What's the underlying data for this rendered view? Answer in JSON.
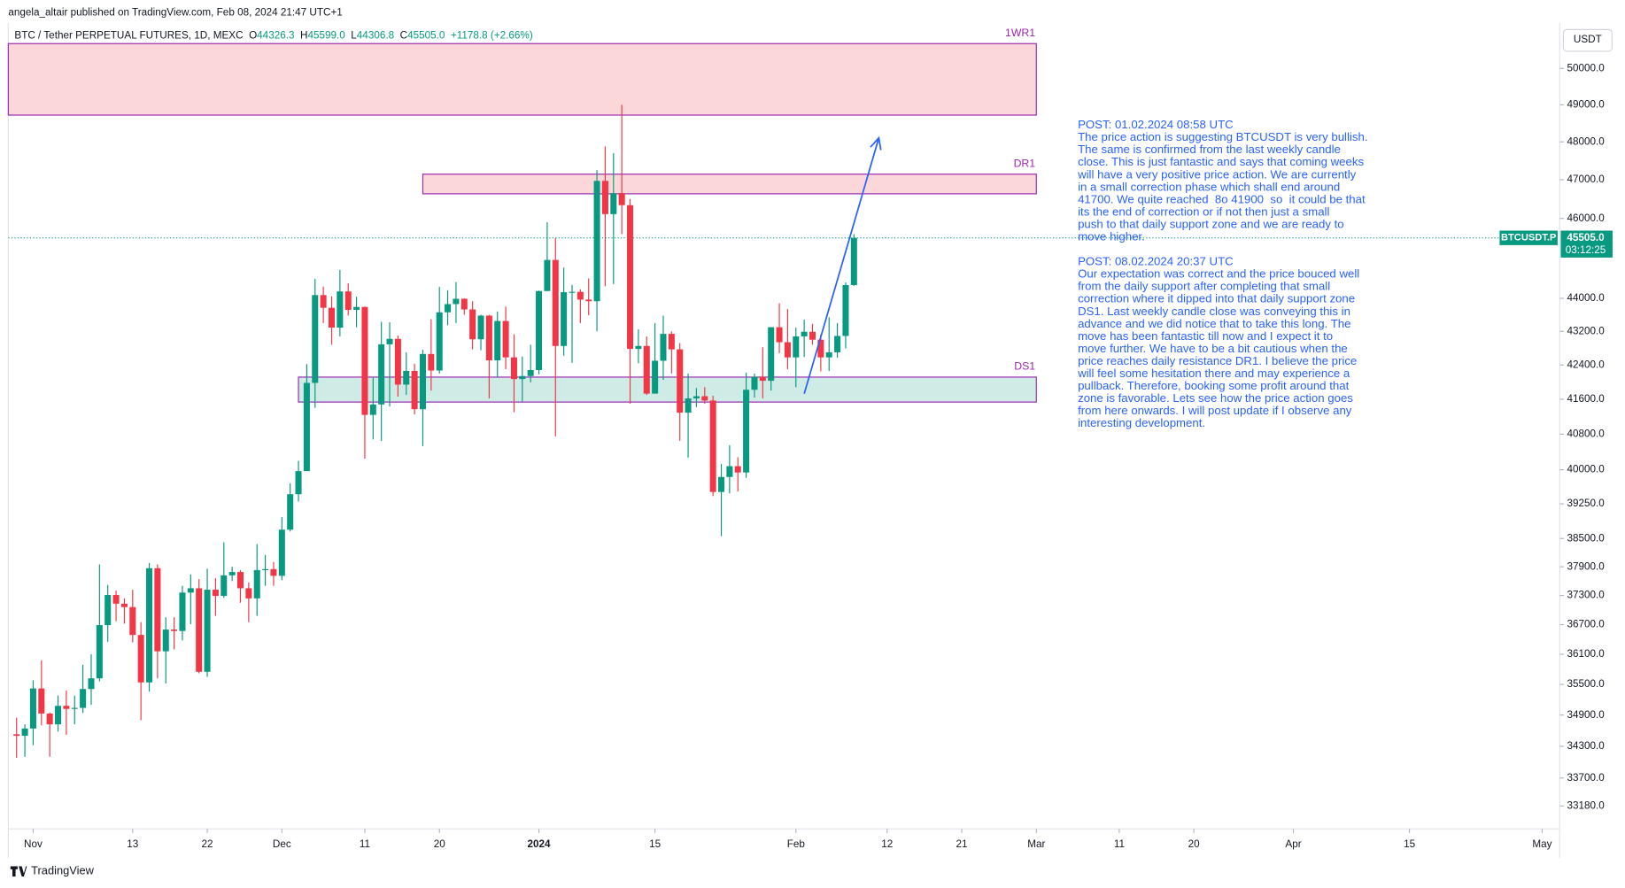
{
  "header": {
    "attribution": "angela_altair published on TradingView.com, Feb 08, 2024 21:47 UTC+1",
    "symbol": "BTC / Tether PERPETUAL FUTURES, 1D, MEXC",
    "ohlc": [
      {
        "key": "O",
        "value": "44326.3"
      },
      {
        "key": "H",
        "value": "45599.0"
      },
      {
        "key": "L",
        "value": "44306.8"
      },
      {
        "key": "C",
        "value": "45505.0"
      }
    ],
    "change": "+1178.8 (+2.66%)",
    "currency_button": "USDT",
    "footer_logo": "TradingView"
  },
  "chart_data": {
    "type": "candlestick",
    "log_scale": true,
    "up_color": "#089981",
    "down_color": "#f23645",
    "x": [
      "2023-10-30",
      "2023-10-31",
      "2023-11-01",
      "2023-11-02",
      "2023-11-03",
      "2023-11-04",
      "2023-11-05",
      "2023-11-06",
      "2023-11-07",
      "2023-11-08",
      "2023-11-09",
      "2023-11-10",
      "2023-11-11",
      "2023-11-12",
      "2023-11-13",
      "2023-11-14",
      "2023-11-15",
      "2023-11-16",
      "2023-11-17",
      "2023-11-18",
      "2023-11-19",
      "2023-11-20",
      "2023-11-21",
      "2023-11-22",
      "2023-11-23",
      "2023-11-24",
      "2023-11-25",
      "2023-11-26",
      "2023-11-27",
      "2023-11-28",
      "2023-11-29",
      "2023-11-30",
      "2023-12-01",
      "2023-12-02",
      "2023-12-03",
      "2023-12-04",
      "2023-12-05",
      "2023-12-06",
      "2023-12-07",
      "2023-12-08",
      "2023-12-09",
      "2023-12-10",
      "2023-12-11",
      "2023-12-12",
      "2023-12-13",
      "2023-12-14",
      "2023-12-15",
      "2023-12-16",
      "2023-12-17",
      "2023-12-18",
      "2023-12-19",
      "2023-12-20",
      "2023-12-21",
      "2023-12-22",
      "2023-12-23",
      "2023-12-24",
      "2023-12-25",
      "2023-12-26",
      "2023-12-27",
      "2023-12-28",
      "2023-12-29",
      "2023-12-30",
      "2023-12-31",
      "2024-01-01",
      "2024-01-02",
      "2024-01-03",
      "2024-01-04",
      "2024-01-05",
      "2024-01-06",
      "2024-01-07",
      "2024-01-08",
      "2024-01-09",
      "2024-01-10",
      "2024-01-11",
      "2024-01-12",
      "2024-01-13",
      "2024-01-14",
      "2024-01-15",
      "2024-01-16",
      "2024-01-17",
      "2024-01-18",
      "2024-01-19",
      "2024-01-20",
      "2024-01-21",
      "2024-01-22",
      "2024-01-23",
      "2024-01-24",
      "2024-01-25",
      "2024-01-26",
      "2024-01-27",
      "2024-01-28",
      "2024-01-29",
      "2024-01-30",
      "2024-01-31",
      "2024-02-01",
      "2024-02-02",
      "2024-02-03",
      "2024-02-04",
      "2024-02-05",
      "2024-02-06",
      "2024-02-07",
      "2024-02-08"
    ],
    "open": [
      34530,
      34500,
      34640,
      35420,
      34930,
      34720,
      35080,
      35020,
      35040,
      35410,
      35620,
      36690,
      37310,
      37130,
      37060,
      36490,
      35540,
      37870,
      36160,
      36600,
      36570,
      37360,
      37450,
      35750,
      37420,
      37290,
      37720,
      37790,
      37450,
      37240,
      37830,
      37850,
      37710,
      38690,
      39460,
      39970,
      41980,
      44080,
      43770,
      43290,
      44170,
      43720,
      43790,
      41240,
      41480,
      42890,
      43020,
      41940,
      42260,
      41370,
      42660,
      42270,
      43660,
      43860,
      43990,
      43730,
      43010,
      43580,
      42510,
      43450,
      42580,
      42070,
      42140,
      42280,
      44180,
      44950,
      42850,
      44150,
      44160,
      43970,
      43930,
      46970,
      46110,
      46650,
      46340,
      42780,
      42850,
      41730,
      42500,
      43140,
      42770,
      41290,
      41620,
      41670,
      41570,
      39510,
      39840,
      40080,
      39940,
      41820,
      42120,
      42030,
      43300,
      42940,
      42580,
      43080,
      43190,
      43000,
      42580,
      42700,
      43090,
      44326
    ],
    "high": [
      34850,
      34720,
      35580,
      35980,
      34950,
      35280,
      35380,
      35280,
      35890,
      36100,
      37950,
      37520,
      37400,
      37240,
      37420,
      36750,
      37980,
      37950,
      36850,
      36850,
      37500,
      37740,
      37640,
      37860,
      37660,
      38420,
      37900,
      37830,
      37570,
      38380,
      38150,
      38000,
      38960,
      39700,
      40200,
      42420,
      44480,
      44290,
      44050,
      44700,
      44370,
      44040,
      43800,
      42100,
      43430,
      43420,
      43100,
      42700,
      42430,
      42760,
      43490,
      44280,
      44200,
      44400,
      44000,
      43930,
      43600,
      43600,
      43680,
      43800,
      43130,
      42600,
      42880,
      44190,
      45900,
      45500,
      44760,
      44330,
      44220,
      44490,
      47250,
      47880,
      47700,
      49000,
      46500,
      43250,
      43080,
      43400,
      43580,
      43200,
      42920,
      42200,
      41860,
      41880,
      41680,
      40130,
      40550,
      40280,
      42220,
      42200,
      42820,
      43300,
      43880,
      43740,
      43290,
      43480,
      43380,
      43120,
      43540,
      43400,
      44390,
      45599
    ],
    "low": [
      34080,
      34100,
      34320,
      34700,
      34100,
      34580,
      34520,
      34720,
      34940,
      35100,
      35560,
      36350,
      36770,
      36720,
      36340,
      34800,
      35360,
      35620,
      35520,
      36200,
      36380,
      36710,
      35720,
      35650,
      36880,
      37250,
      37600,
      37150,
      36750,
      36880,
      37500,
      37500,
      37620,
      38650,
      39300,
      39970,
      41400,
      43400,
      42880,
      43080,
      43580,
      43300,
      40250,
      40680,
      40650,
      41430,
      41660,
      41700,
      41250,
      40530,
      41800,
      42200,
      43350,
      43400,
      43600,
      42770,
      42750,
      41620,
      42100,
      42300,
      41300,
      41550,
      41990,
      42180,
      44180,
      40750,
      42620,
      42450,
      43400,
      43590,
      43200,
      44300,
      44350,
      45600,
      41500,
      42440,
      41700,
      41730,
      42050,
      42200,
      40650,
      40270,
      41420,
      41500,
      39420,
      38550,
      39480,
      39520,
      39820,
      41640,
      41620,
      41800,
      42680,
      42300,
      41880,
      42590,
      42880,
      42250,
      42260,
      42570,
      42790,
      44307
    ],
    "close": [
      34500,
      34640,
      35420,
      34930,
      34720,
      35080,
      35020,
      35040,
      35410,
      35620,
      36690,
      37310,
      37130,
      37060,
      36490,
      35540,
      37870,
      36160,
      36600,
      36570,
      37360,
      37450,
      35750,
      37420,
      37290,
      37720,
      37790,
      37450,
      37240,
      37830,
      37850,
      37710,
      38690,
      39460,
      39970,
      41980,
      44080,
      43770,
      43290,
      44170,
      43720,
      43790,
      41240,
      41480,
      42890,
      43020,
      41940,
      42260,
      41370,
      42660,
      42270,
      43660,
      43860,
      43990,
      43730,
      43010,
      43580,
      42510,
      43450,
      42580,
      42070,
      42140,
      42280,
      44180,
      44950,
      42850,
      44150,
      44160,
      43970,
      43930,
      46970,
      46110,
      46650,
      46340,
      42780,
      42850,
      41730,
      42500,
      43140,
      42770,
      41290,
      41620,
      41670,
      41570,
      39510,
      39840,
      40080,
      39940,
      41820,
      42120,
      42030,
      43300,
      42940,
      42580,
      43080,
      43190,
      43000,
      42580,
      42700,
      43090,
      44326,
      45505
    ],
    "xlim": [
      "2023-10-29",
      "2024-05-02"
    ],
    "xticks": [
      {
        "value": "2023-11-01",
        "label": "Nov"
      },
      {
        "value": "2023-11-13",
        "label": "13"
      },
      {
        "value": "2023-11-22",
        "label": "22"
      },
      {
        "value": "2023-12-01",
        "label": "Dec"
      },
      {
        "value": "2023-12-11",
        "label": "11"
      },
      {
        "value": "2023-12-20",
        "label": "20"
      },
      {
        "value": "2024-01-01",
        "label": "2024"
      },
      {
        "value": "2024-01-15",
        "label": "15"
      },
      {
        "value": "2024-02-01",
        "label": "Feb"
      },
      {
        "value": "2024-02-12",
        "label": "12"
      },
      {
        "value": "2024-02-21",
        "label": "21"
      },
      {
        "value": "2024-03-01",
        "label": "Mar"
      },
      {
        "value": "2024-03-11",
        "label": "11"
      },
      {
        "value": "2024-03-20",
        "label": "20"
      },
      {
        "value": "2024-04-01",
        "label": "Apr"
      },
      {
        "value": "2024-04-15",
        "label": "15"
      },
      {
        "value": "2024-05-01",
        "label": "May"
      }
    ],
    "ylim": [
      32760,
      51050
    ],
    "yticks": [
      {
        "value": 50000,
        "label": "50000.0"
      },
      {
        "value": 49000,
        "label": "49000.0"
      },
      {
        "value": 48000,
        "label": "48000.0"
      },
      {
        "value": 47000,
        "label": "47000.0"
      },
      {
        "value": 46000,
        "label": "46000.0"
      },
      {
        "value": 44000,
        "label": "44000.0"
      },
      {
        "value": 43200,
        "label": "43200.0"
      },
      {
        "value": 42400,
        "label": "42400.0"
      },
      {
        "value": 41600,
        "label": "41600.0"
      },
      {
        "value": 40800,
        "label": "40800.0"
      },
      {
        "value": 40000,
        "label": "40000.0"
      },
      {
        "value": 39250,
        "label": "39250.0"
      },
      {
        "value": 38500,
        "label": "38500.0"
      },
      {
        "value": 37900,
        "label": "37900.0"
      },
      {
        "value": 37300,
        "label": "37300.0"
      },
      {
        "value": 36700,
        "label": "36700.0"
      },
      {
        "value": 36100,
        "label": "36100.0"
      },
      {
        "value": 35500,
        "label": "35500.0"
      },
      {
        "value": 34900,
        "label": "34900.0"
      },
      {
        "value": 34300,
        "label": "34300.0"
      },
      {
        "value": 33700,
        "label": "33700.0"
      },
      {
        "value": 33180,
        "label": "33180.0"
      }
    ],
    "zones": [
      {
        "label": "1WR1",
        "from": "2023-10-29",
        "to": "2024-03-01",
        "top": 50696,
        "bottom": 48720,
        "fill": "rgba(242,54,69,0.2)",
        "border": "#9c27b0"
      },
      {
        "label": "DR1",
        "from": "2023-12-18",
        "to": "2024-03-01",
        "top": 47146,
        "bottom": 46634,
        "fill": "rgba(242,54,69,0.2)",
        "border": "#9c27b0"
      },
      {
        "label": "DS1",
        "from": "2023-12-03",
        "to": "2024-03-01",
        "top": 42115,
        "bottom": 41535,
        "fill": "rgba(8,153,129,0.2)",
        "border": "#9c27b0"
      }
    ],
    "arrow": {
      "from": "2024-02-02",
      "from_price": 41727,
      "to": "2024-02-11",
      "to_price": 48107,
      "color": "#2962ff"
    },
    "last_price": {
      "symbol": "BTCUSDT.P",
      "value": 45505,
      "label": "45505.0",
      "countdown": "03:12:25",
      "color": "#089981"
    },
    "notes": [
      {
        "lines": [
          "POST: 01.02.2024 08:58 UTC",
          "The price action is suggesting BTCUSDT is very bullish.",
          "The same is confirmed from the last weekly candle",
          "close. This is just fantastic and says that coming weeks",
          "will have a very positive price action. We are currently",
          "in a small correction phase which shall end around",
          "41700. We quite reached  8o 41900  so  it could be that",
          "its the end of correction or if not then just a small",
          "push to that daily support zone and we are ready to",
          "move higher."
        ]
      },
      {
        "lines": [
          "POST: 08.02.2024 20:37 UTC",
          "Our expectation was correct and the price bouced well",
          "from the daily support after completing that small",
          "correction where it dipped into that daily support zone",
          "DS1. Last weekly candle close was conveying this in",
          "advance and we did notice that to take this long. The",
          "move has been fantastic till now and I expect it to",
          "move further. We have to be a bit cautious when the",
          "price reaches daily resistance DR1. I believe the price",
          "will feel some hesitation there and may experience a",
          "pullback. Therefore, booking some profit around that",
          "zone is favorable. Lets see how the price action goes",
          "from here onwards. I will post update if I observe any",
          "interesting development."
        ]
      }
    ]
  }
}
